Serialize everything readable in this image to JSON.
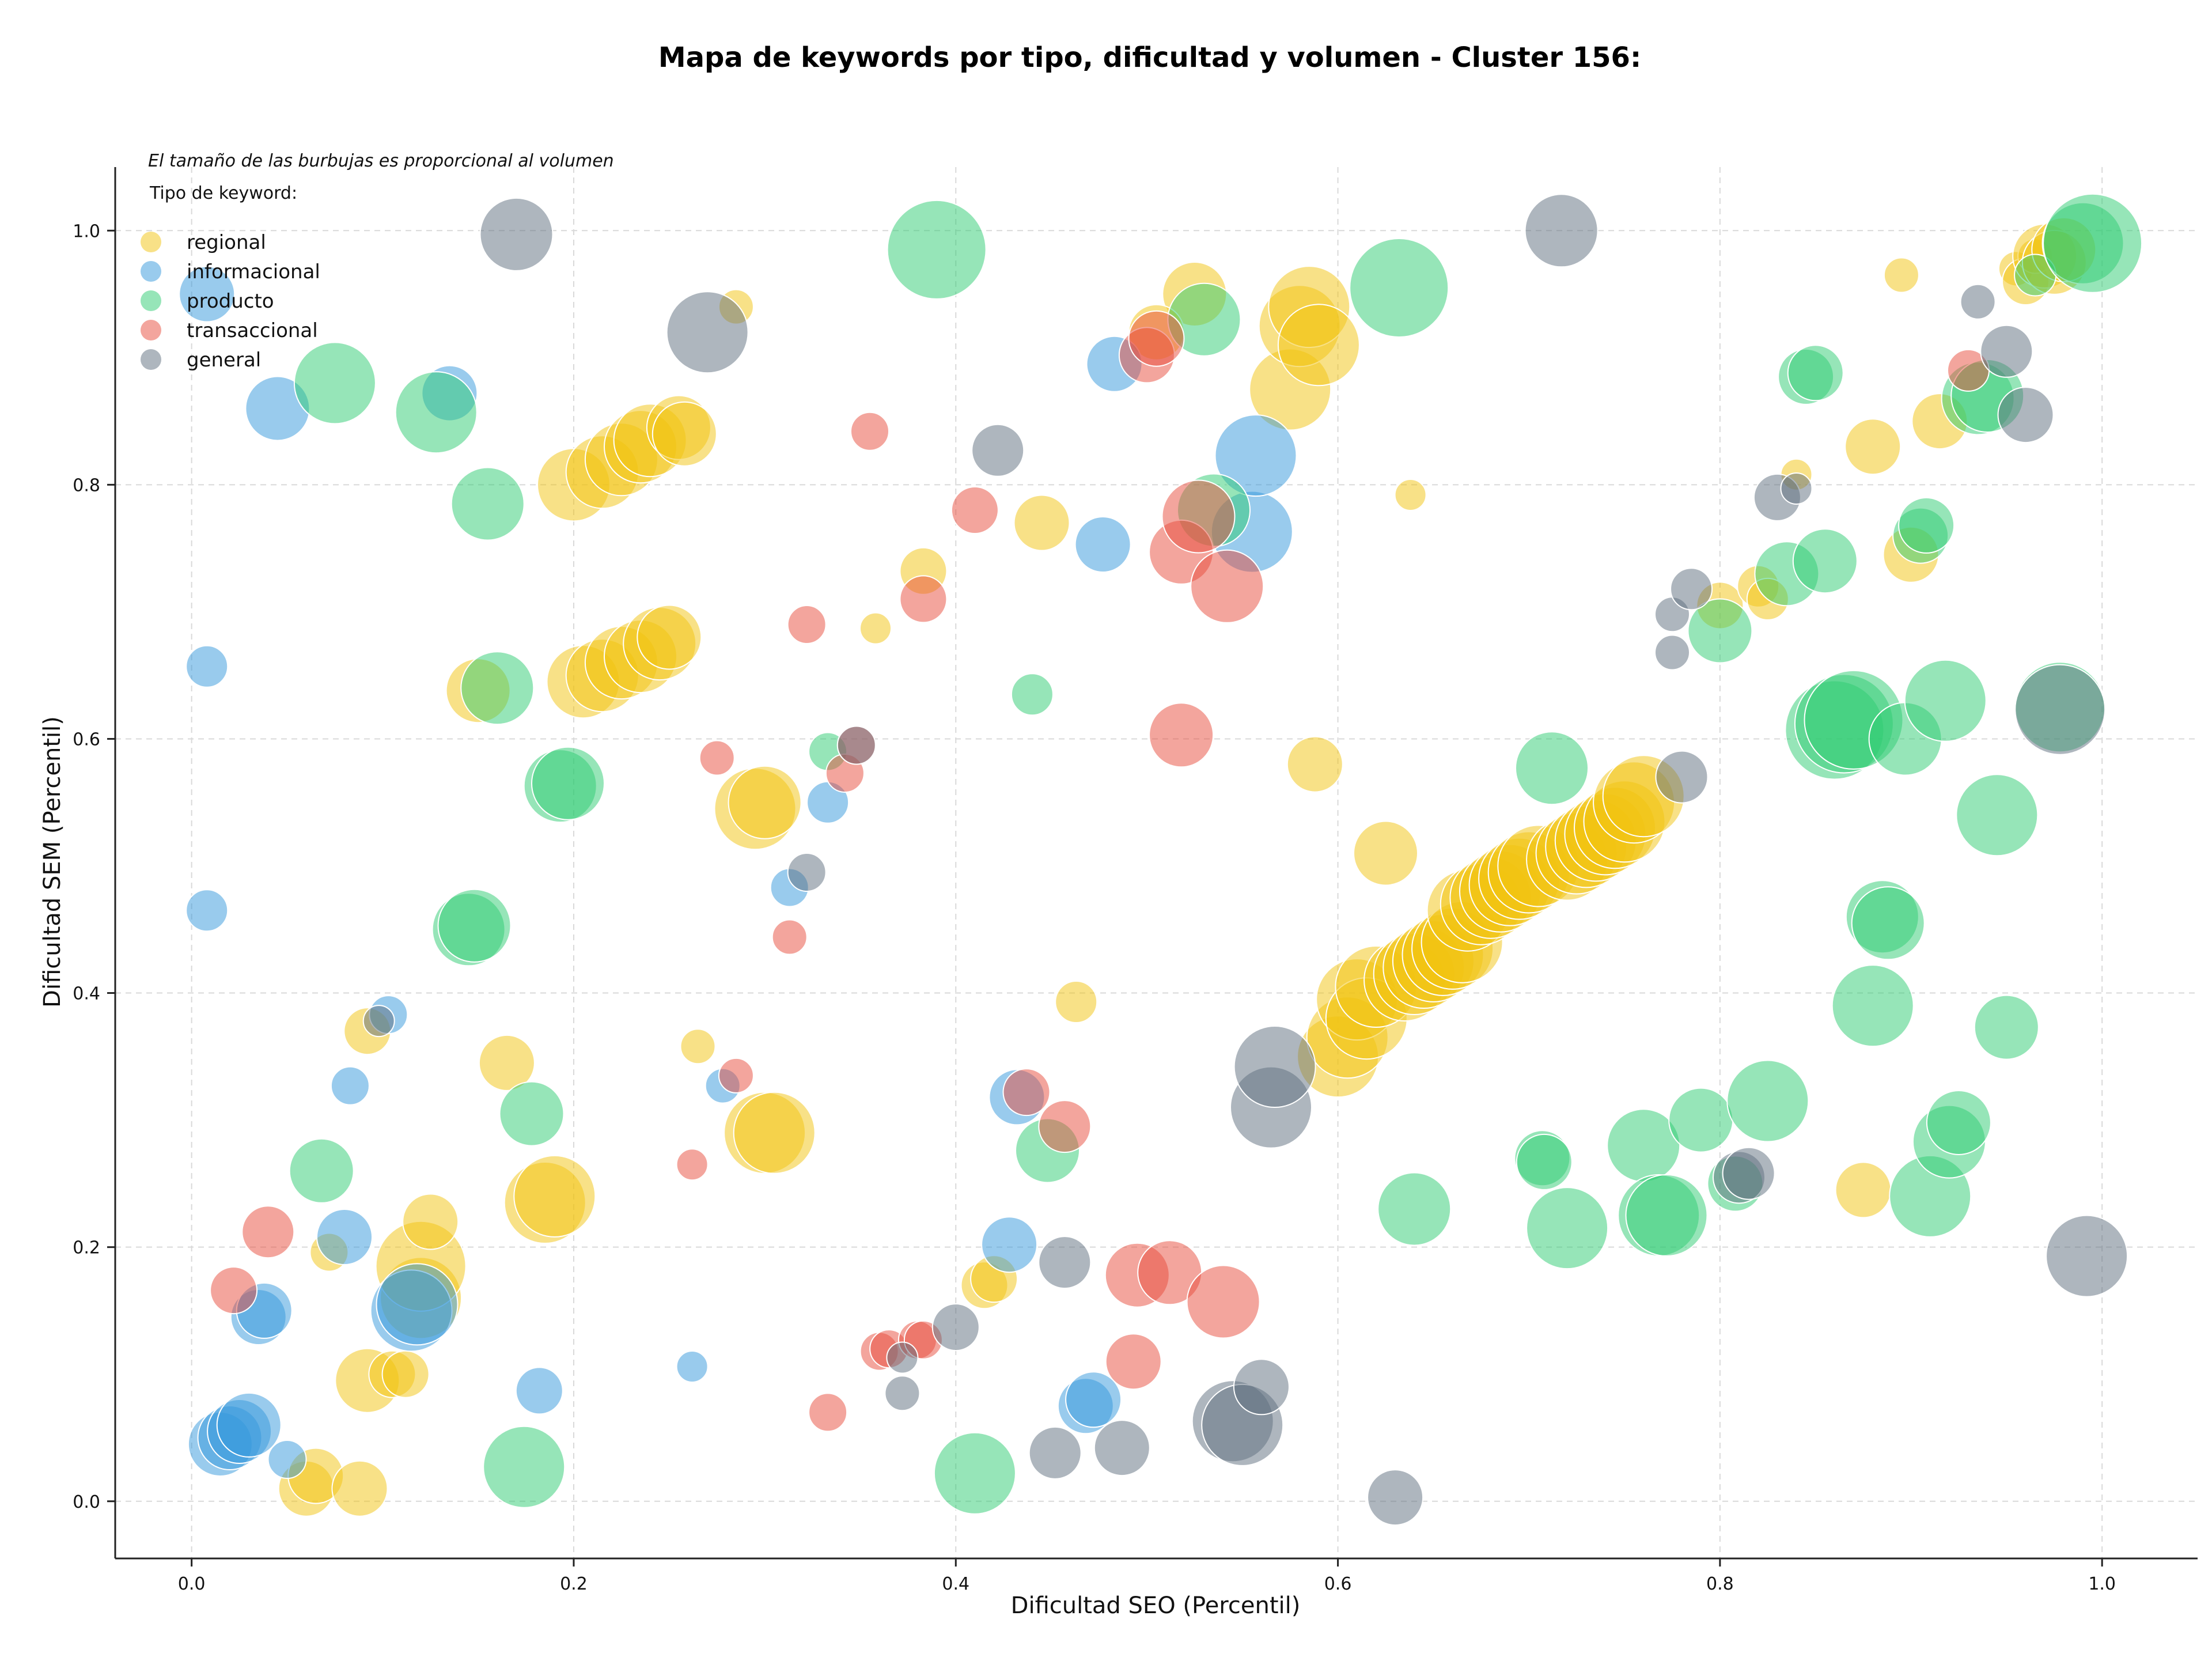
{
  "chart_data": {
    "type": "scatter",
    "title": "Mapa de keywords por tipo, dificultad y volumen - Cluster 156:",
    "xlabel": "Dificultad SEO (Percentil)",
    "ylabel": "Dificultad SEM (Percentil)",
    "xlim": [
      -0.04,
      1.05
    ],
    "ylim": [
      -0.045,
      1.05
    ],
    "xticks": [
      "0.0",
      "0.2",
      "0.4",
      "0.6",
      "0.8",
      "1.0"
    ],
    "yticks": [
      "0.0",
      "0.2",
      "0.4",
      "0.6",
      "0.8",
      "1.0"
    ],
    "grid": true,
    "legend_position": "top-left",
    "size_note": "El tamaño de las burbujas es proporcional al volumen",
    "legend_title": "Tipo de keyword:",
    "series": [
      {
        "name": "regional",
        "color": "#f1c40f",
        "points": [
          [
            0.06,
            0.01,
            2
          ],
          [
            0.065,
            0.02,
            2
          ],
          [
            0.088,
            0.01,
            2
          ],
          [
            0.092,
            0.095,
            2.5
          ],
          [
            0.105,
            0.1,
            1.5
          ],
          [
            0.112,
            0.1,
            1.5
          ],
          [
            0.072,
            0.196,
            1
          ],
          [
            0.092,
            0.37,
            1.5
          ],
          [
            0.12,
            0.16,
            3.5
          ],
          [
            0.12,
            0.185,
            4
          ],
          [
            0.125,
            0.22,
            2
          ],
          [
            0.165,
            0.345,
            2
          ],
          [
            0.185,
            0.235,
            3.5
          ],
          [
            0.19,
            0.24,
            3.5
          ],
          [
            0.265,
            0.358,
            0.8
          ],
          [
            0.3,
            0.29,
            3.5
          ],
          [
            0.305,
            0.29,
            3.5
          ],
          [
            0.295,
            0.545,
            3.5
          ],
          [
            0.3,
            0.55,
            3
          ],
          [
            0.285,
            0.94,
            0.8
          ],
          [
            0.15,
            0.638,
            2.5
          ],
          [
            0.2,
            0.8,
            3
          ],
          [
            0.215,
            0.81,
            3
          ],
          [
            0.225,
            0.82,
            3
          ],
          [
            0.235,
            0.83,
            3
          ],
          [
            0.24,
            0.835,
            3
          ],
          [
            0.255,
            0.845,
            2.5
          ],
          [
            0.258,
            0.84,
            2.5
          ],
          [
            0.205,
            0.645,
            3
          ],
          [
            0.215,
            0.65,
            3
          ],
          [
            0.225,
            0.66,
            3
          ],
          [
            0.235,
            0.665,
            3
          ],
          [
            0.245,
            0.675,
            3
          ],
          [
            0.25,
            0.68,
            2.5
          ],
          [
            0.358,
            0.687,
            0.6
          ],
          [
            0.383,
            0.732,
            1.5
          ],
          [
            0.445,
            0.77,
            2
          ],
          [
            0.415,
            0.17,
            1.5
          ],
          [
            0.42,
            0.175,
            1.5
          ],
          [
            0.463,
            0.393,
            1.2
          ],
          [
            0.525,
            0.95,
            2.5
          ],
          [
            0.505,
            0.92,
            2
          ],
          [
            0.575,
            0.875,
            3.5
          ],
          [
            0.58,
            0.925,
            3.5
          ],
          [
            0.585,
            0.94,
            3.5
          ],
          [
            0.59,
            0.91,
            3.5
          ],
          [
            0.638,
            0.792,
            0.6
          ],
          [
            0.588,
            0.58,
            2
          ],
          [
            0.625,
            0.51,
            2.5
          ],
          [
            0.6,
            0.35,
            3.5
          ],
          [
            0.605,
            0.365,
            3.5
          ],
          [
            0.61,
            0.395,
            3.5
          ],
          [
            0.615,
            0.38,
            3.5
          ],
          [
            0.62,
            0.405,
            3.5
          ],
          [
            0.635,
            0.41,
            3.5
          ],
          [
            0.64,
            0.415,
            3.5
          ],
          [
            0.645,
            0.42,
            3.5
          ],
          [
            0.65,
            0.425,
            3.5
          ],
          [
            0.655,
            0.43,
            3.5
          ],
          [
            0.66,
            0.435,
            3.5
          ],
          [
            0.665,
            0.44,
            3.5
          ],
          [
            0.668,
            0.465,
            3.5
          ],
          [
            0.675,
            0.47,
            3.5
          ],
          [
            0.68,
            0.475,
            3.5
          ],
          [
            0.685,
            0.48,
            3.5
          ],
          [
            0.69,
            0.485,
            3.5
          ],
          [
            0.695,
            0.49,
            3.5
          ],
          [
            0.7,
            0.495,
            3.5
          ],
          [
            0.705,
            0.5,
            3.5
          ],
          [
            0.72,
            0.505,
            3.5
          ],
          [
            0.725,
            0.51,
            3.5
          ],
          [
            0.73,
            0.515,
            3.5
          ],
          [
            0.735,
            0.52,
            3.5
          ],
          [
            0.74,
            0.525,
            3.5
          ],
          [
            0.745,
            0.53,
            3.5
          ],
          [
            0.75,
            0.535,
            3.5
          ],
          [
            0.755,
            0.55,
            3.5
          ],
          [
            0.76,
            0.555,
            3.5
          ],
          [
            0.8,
            0.705,
            1.5
          ],
          [
            0.82,
            0.72,
            1.2
          ],
          [
            0.825,
            0.71,
            1.2
          ],
          [
            0.84,
            0.808,
            0.6
          ],
          [
            0.875,
            0.245,
            2
          ],
          [
            0.88,
            0.83,
            2
          ],
          [
            0.9,
            0.745,
            2
          ],
          [
            0.915,
            0.85,
            2
          ],
          [
            0.895,
            0.965,
            0.8
          ],
          [
            0.955,
            0.97,
            0.8
          ],
          [
            0.96,
            0.96,
            1.5
          ],
          [
            0.965,
            0.98,
            0.8
          ],
          [
            0.97,
            0.98,
            2.5
          ],
          [
            0.975,
            0.975,
            2.5
          ],
          [
            0.98,
            0.985,
            2.5
          ]
        ]
      },
      {
        "name": "informacional",
        "color": "#3498db",
        "points": [
          [
            0.015,
            0.045,
            2.5
          ],
          [
            0.02,
            0.05,
            2.5
          ],
          [
            0.025,
            0.055,
            2.5
          ],
          [
            0.03,
            0.06,
            2.5
          ],
          [
            0.035,
            0.145,
            2
          ],
          [
            0.038,
            0.15,
            2
          ],
          [
            0.05,
            0.033,
            1
          ],
          [
            0.08,
            0.208,
            2
          ],
          [
            0.083,
            0.327,
            1
          ],
          [
            0.103,
            0.383,
            1
          ],
          [
            0.115,
            0.15,
            3.5
          ],
          [
            0.118,
            0.155,
            3.5
          ],
          [
            0.182,
            0.087,
            1.5
          ],
          [
            0.008,
            0.465,
            1.2
          ],
          [
            0.008,
            0.657,
            1.2
          ],
          [
            0.008,
            0.95,
            2
          ],
          [
            0.045,
            0.86,
            2.5
          ],
          [
            0.135,
            0.872,
            2
          ],
          [
            0.262,
            0.106,
            0.6
          ],
          [
            0.278,
            0.327,
            0.8
          ],
          [
            0.313,
            0.483,
            1
          ],
          [
            0.333,
            0.55,
            1.2
          ],
          [
            0.428,
            0.202,
            2
          ],
          [
            0.432,
            0.318,
            2
          ],
          [
            0.468,
            0.075,
            2
          ],
          [
            0.472,
            0.08,
            2
          ],
          [
            0.477,
            0.753,
            2
          ],
          [
            0.483,
            0.895,
            2
          ],
          [
            0.555,
            0.763,
            3.5
          ],
          [
            0.557,
            0.823,
            3.5
          ]
        ]
      },
      {
        "name": "producto",
        "color": "#2ecc71",
        "points": [
          [
            0.068,
            0.26,
            2.5
          ],
          [
            0.075,
            0.88,
            3.5
          ],
          [
            0.128,
            0.857,
            3.5
          ],
          [
            0.145,
            0.45,
            3
          ],
          [
            0.148,
            0.453,
            3
          ],
          [
            0.155,
            0.785,
            3
          ],
          [
            0.16,
            0.64,
            3
          ],
          [
            0.174,
            0.027,
            3.5
          ],
          [
            0.178,
            0.305,
            2.5
          ],
          [
            0.193,
            0.563,
            3
          ],
          [
            0.197,
            0.565,
            3
          ],
          [
            0.333,
            0.59,
            1
          ],
          [
            0.39,
            0.985,
            4.5
          ],
          [
            0.41,
            0.022,
            3.5
          ],
          [
            0.44,
            0.635,
            1.2
          ],
          [
            0.448,
            0.276,
            2.5
          ],
          [
            0.53,
            0.93,
            3
          ],
          [
            0.535,
            0.78,
            3
          ],
          [
            0.632,
            0.955,
            4.5
          ],
          [
            0.64,
            0.23,
            3
          ],
          [
            0.707,
            0.27,
            2
          ],
          [
            0.708,
            0.267,
            2
          ],
          [
            0.712,
            0.577,
            3
          ],
          [
            0.72,
            0.215,
            3.5
          ],
          [
            0.76,
            0.28,
            3
          ],
          [
            0.768,
            0.225,
            3.5
          ],
          [
            0.772,
            0.225,
            3.5
          ],
          [
            0.79,
            0.3,
            2.5
          ],
          [
            0.8,
            0.685,
            2.5
          ],
          [
            0.808,
            0.25,
            2
          ],
          [
            0.825,
            0.315,
            3.5
          ],
          [
            0.835,
            0.73,
            2.5
          ],
          [
            0.845,
            0.885,
            2
          ],
          [
            0.85,
            0.888,
            2
          ],
          [
            0.855,
            0.74,
            2.5
          ],
          [
            0.86,
            0.607,
            4.5
          ],
          [
            0.865,
            0.612,
            4.5
          ],
          [
            0.87,
            0.615,
            4.5
          ],
          [
            0.88,
            0.39,
            3.5
          ],
          [
            0.885,
            0.46,
            3
          ],
          [
            0.888,
            0.455,
            3
          ],
          [
            0.897,
            0.6,
            3
          ],
          [
            0.905,
            0.76,
            2
          ],
          [
            0.908,
            0.768,
            2
          ],
          [
            0.91,
            0.24,
            3.5
          ],
          [
            0.918,
            0.63,
            3.5
          ],
          [
            0.92,
            0.283,
            3
          ],
          [
            0.925,
            0.298,
            2.5
          ],
          [
            0.935,
            0.868,
            3
          ],
          [
            0.94,
            0.87,
            3
          ],
          [
            0.945,
            0.54,
            3.5
          ],
          [
            0.95,
            0.373,
            2.5
          ],
          [
            0.965,
            0.965,
            1.2
          ],
          [
            0.978,
            0.625,
            4
          ],
          [
            0.99,
            0.99,
            3.5
          ],
          [
            0.995,
            0.99,
            4.5
          ]
        ]
      },
      {
        "name": "transaccional",
        "color": "#e74c3c",
        "points": [
          [
            0.022,
            0.166,
            1.5
          ],
          [
            0.04,
            0.212,
            1.8
          ],
          [
            0.262,
            0.265,
            0.6
          ],
          [
            0.275,
            0.585,
            0.8
          ],
          [
            0.285,
            0.335,
            0.8
          ],
          [
            0.313,
            0.444,
            0.8
          ],
          [
            0.322,
            0.69,
            1
          ],
          [
            0.333,
            0.07,
            1
          ],
          [
            0.342,
            0.573,
            1
          ],
          [
            0.348,
            0.595,
            1
          ],
          [
            0.355,
            0.842,
            1
          ],
          [
            0.36,
            0.118,
            1
          ],
          [
            0.365,
            0.12,
            1
          ],
          [
            0.38,
            0.127,
            1
          ],
          [
            0.383,
            0.127,
            1
          ],
          [
            0.383,
            0.71,
            1.5
          ],
          [
            0.41,
            0.78,
            1.5
          ],
          [
            0.437,
            0.322,
            1.5
          ],
          [
            0.457,
            0.295,
            1.8
          ],
          [
            0.493,
            0.11,
            2
          ],
          [
            0.495,
            0.178,
            2.5
          ],
          [
            0.5,
            0.902,
            2
          ],
          [
            0.505,
            0.915,
            2
          ],
          [
            0.512,
            0.18,
            2.5
          ],
          [
            0.518,
            0.603,
            2.5
          ],
          [
            0.518,
            0.747,
            2.5
          ],
          [
            0.527,
            0.775,
            3
          ],
          [
            0.54,
            0.157,
            3
          ],
          [
            0.542,
            0.72,
            3
          ],
          [
            0.93,
            0.89,
            1.2
          ]
        ]
      },
      {
        "name": "general",
        "color": "#5d6d7e",
        "points": [
          [
            0.098,
            0.378,
            0.6
          ],
          [
            0.17,
            0.997,
            3
          ],
          [
            0.27,
            0.92,
            3.5
          ],
          [
            0.322,
            0.495,
            1
          ],
          [
            0.348,
            0.595,
            1
          ],
          [
            0.372,
            0.085,
            0.8
          ],
          [
            0.372,
            0.113,
            0.6
          ],
          [
            0.4,
            0.137,
            1.5
          ],
          [
            0.422,
            0.827,
            1.8
          ],
          [
            0.452,
            0.038,
            1.8
          ],
          [
            0.457,
            0.188,
            1.8
          ],
          [
            0.487,
            0.042,
            2
          ],
          [
            0.545,
            0.063,
            3.5
          ],
          [
            0.55,
            0.06,
            3.5
          ],
          [
            0.56,
            0.09,
            2
          ],
          [
            0.565,
            0.31,
            3.5
          ],
          [
            0.567,
            0.342,
            3.5
          ],
          [
            0.63,
            0.003,
            2
          ],
          [
            0.717,
            1.0,
            3
          ],
          [
            0.775,
            0.668,
            0.8
          ],
          [
            0.775,
            0.698,
            0.8
          ],
          [
            0.78,
            0.57,
            1.8
          ],
          [
            0.785,
            0.718,
            1.2
          ],
          [
            0.81,
            0.255,
            1.8
          ],
          [
            0.815,
            0.258,
            1.8
          ],
          [
            0.83,
            0.79,
            1.5
          ],
          [
            0.84,
            0.797,
            0.6
          ],
          [
            0.935,
            0.944,
            0.8
          ],
          [
            0.95,
            0.905,
            1.8
          ],
          [
            0.96,
            0.855,
            2
          ],
          [
            0.978,
            0.623,
            4
          ],
          [
            0.992,
            0.193,
            3.5
          ]
        ]
      }
    ]
  }
}
